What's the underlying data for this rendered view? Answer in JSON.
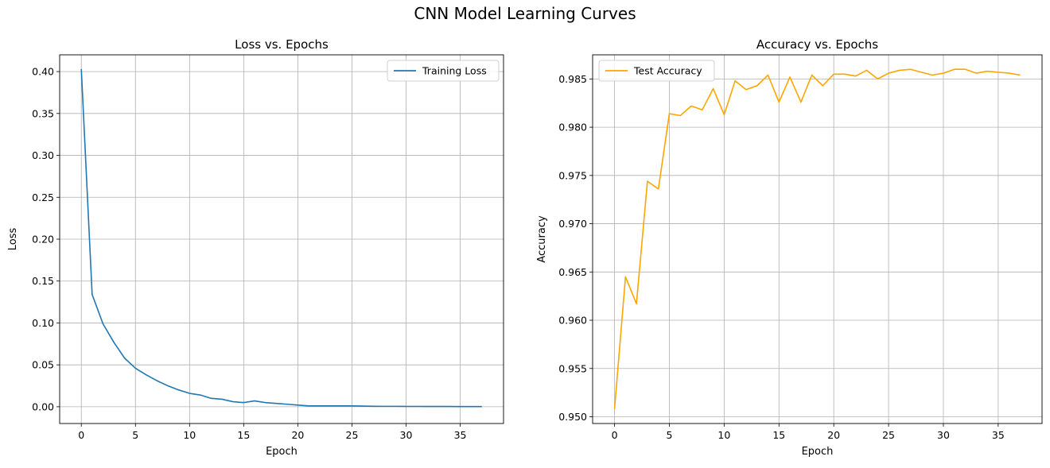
{
  "figure": {
    "title": "CNN Model Learning Curves"
  },
  "chart_data": [
    {
      "type": "line",
      "title": "Loss vs. Epochs",
      "xlabel": "Epoch",
      "ylabel": "Loss",
      "xlim": [
        -2,
        39
      ],
      "ylim": [
        -0.02,
        0.42
      ],
      "xticks": [
        0,
        5,
        10,
        15,
        20,
        25,
        30,
        35
      ],
      "yticks": [
        0.0,
        0.05,
        0.1,
        0.15,
        0.2,
        0.25,
        0.3,
        0.35,
        0.4
      ],
      "ytick_decimals": 2,
      "grid": true,
      "legend": "top-right",
      "series": [
        {
          "name": "Training Loss",
          "color": "#1f77b4",
          "x": [
            0,
            1,
            2,
            3,
            4,
            5,
            6,
            7,
            8,
            9,
            10,
            11,
            12,
            13,
            14,
            15,
            16,
            17,
            18,
            19,
            20,
            21,
            22,
            23,
            24,
            25,
            26,
            27,
            28,
            29,
            30,
            31,
            32,
            33,
            34,
            35,
            36,
            37
          ],
          "y": [
            0.403,
            0.134,
            0.099,
            0.077,
            0.058,
            0.046,
            0.038,
            0.031,
            0.025,
            0.02,
            0.016,
            0.014,
            0.01,
            0.009,
            0.006,
            0.005,
            0.007,
            0.005,
            0.004,
            0.003,
            0.002,
            0.001,
            0.001,
            0.001,
            0.001,
            0.001,
            0.0008,
            0.0006,
            0.0005,
            0.0005,
            0.0004,
            0.0004,
            0.0003,
            0.0003,
            0.0003,
            0.0002,
            0.0002,
            0.0002
          ]
        }
      ]
    },
    {
      "type": "line",
      "title": "Accuracy vs. Epochs",
      "xlabel": "Epoch",
      "ylabel": "Accuracy",
      "xlim": [
        -2,
        39
      ],
      "ylim": [
        0.9493,
        0.9875
      ],
      "xticks": [
        0,
        5,
        10,
        15,
        20,
        25,
        30,
        35
      ],
      "yticks": [
        0.95,
        0.955,
        0.96,
        0.965,
        0.97,
        0.975,
        0.98,
        0.985
      ],
      "ytick_decimals": 3,
      "grid": true,
      "legend": "top-left",
      "series": [
        {
          "name": "Test Accuracy",
          "color": "#ffa500",
          "x": [
            0,
            1,
            2,
            3,
            4,
            5,
            6,
            7,
            8,
            9,
            10,
            11,
            12,
            13,
            14,
            15,
            16,
            17,
            18,
            19,
            20,
            21,
            22,
            23,
            24,
            25,
            26,
            27,
            28,
            29,
            30,
            31,
            32,
            33,
            34,
            35,
            36,
            37
          ],
          "y": [
            0.9508,
            0.9645,
            0.9617,
            0.9744,
            0.9736,
            0.9814,
            0.9812,
            0.9822,
            0.9818,
            0.984,
            0.9813,
            0.9848,
            0.9839,
            0.9843,
            0.9854,
            0.9826,
            0.9852,
            0.9826,
            0.9854,
            0.9843,
            0.9855,
            0.9855,
            0.9853,
            0.9859,
            0.985,
            0.9856,
            0.9859,
            0.986,
            0.9857,
            0.9854,
            0.9856,
            0.986,
            0.986,
            0.9856,
            0.9858,
            0.9857,
            0.9856,
            0.9854
          ]
        }
      ]
    }
  ]
}
